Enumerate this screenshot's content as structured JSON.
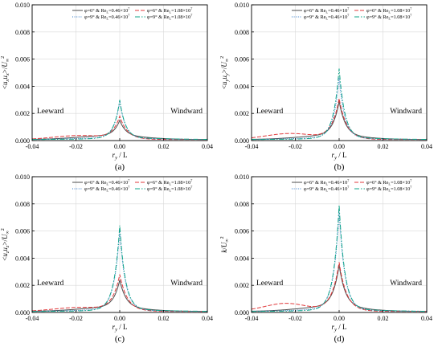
{
  "chart_data": [
    {
      "type": "line",
      "panel_label": "(a)",
      "ylabel": "<u_x u_x>/U_∞^2",
      "ylabel_parts": {
        "open": "<",
        "var1": "u",
        "sub1": "x",
        "var2": "u",
        "sub2": "x",
        "close": ">/",
        "den": "U",
        "den_sub": "∞",
        "den_sup": "2"
      },
      "xlabel": "r_y / L",
      "xlabel_parts": {
        "var": "r",
        "sub": "y",
        "rest": " / L"
      },
      "xlim": [
        -0.04,
        0.04
      ],
      "ylim": [
        0,
        0.01
      ],
      "xticks": [
        "-0.04",
        "-0.02",
        "0.00",
        "0.02",
        "0.04"
      ],
      "yticks": [
        "0.000",
        "0.002",
        "0.004",
        "0.006",
        "0.008",
        "0.010"
      ],
      "grid": true,
      "legend_position": "top",
      "annotations": {
        "left": "Leeward",
        "right": "Windward"
      },
      "series_peaks": [
        0.0015,
        0.0018,
        0.0029,
        0.003
      ]
    },
    {
      "type": "line",
      "panel_label": "(b)",
      "ylabel": "<u_y u_y>/U_∞^2",
      "ylabel_parts": {
        "open": "<",
        "var1": "u",
        "sub1": "y",
        "var2": "u",
        "sub2": "y",
        "close": ">/",
        "den": "U",
        "den_sub": "∞",
        "den_sup": "2"
      },
      "xlabel": "r_y / L",
      "xlabel_parts": {
        "var": "r",
        "sub": "y",
        "rest": " / L"
      },
      "xlim": [
        -0.04,
        0.04
      ],
      "ylim": [
        0,
        0.01
      ],
      "xticks": [
        "-0.04",
        "-0.02",
        "0.00",
        "0.02",
        "0.04"
      ],
      "yticks": [
        "0.000",
        "0.002",
        "0.004",
        "0.006",
        "0.008",
        "0.010"
      ],
      "grid": true,
      "legend_position": "top",
      "annotations": {
        "left": "Leeward",
        "right": "Windward"
      },
      "series_peaks": [
        0.0029,
        0.0031,
        0.0046,
        0.0053
      ]
    },
    {
      "type": "line",
      "panel_label": "(c)",
      "ylabel": "<u_z u_z>/U_∞^2",
      "ylabel_parts": {
        "open": "<",
        "var1": "u",
        "sub1": "z",
        "var2": "u",
        "sub2": "z",
        "close": ">/",
        "den": "U",
        "den_sub": "∞",
        "den_sup": "2"
      },
      "xlabel": "r_y / L",
      "xlabel_parts": {
        "var": "r",
        "sub": "y",
        "rest": " / L"
      },
      "xlim": [
        -0.04,
        0.04
      ],
      "ylim": [
        0,
        0.01
      ],
      "xticks": [
        "-0.04",
        "-0.02",
        "0.00",
        "0.02",
        "0.04"
      ],
      "yticks": [
        "0.000",
        "0.002",
        "0.004",
        "0.006",
        "0.008",
        "0.010"
      ],
      "grid": true,
      "legend_position": "top",
      "annotations": {
        "left": "Leeward",
        "right": "Windward"
      },
      "series_peaks": [
        0.0024,
        0.0028,
        0.006,
        0.0064
      ]
    },
    {
      "type": "line",
      "panel_label": "(d)",
      "ylabel": "k/U_∞^2",
      "ylabel_parts": {
        "open": "",
        "var1": "k",
        "sub1": "",
        "var2": "",
        "sub2": "",
        "close": "/",
        "den": "U",
        "den_sub": "∞",
        "den_sup": "2"
      },
      "xlabel": "r_y / L",
      "xlabel_parts": {
        "var": "r",
        "sub": "y",
        "rest": " / L"
      },
      "xlim": [
        -0.04,
        0.04
      ],
      "ylim": [
        0,
        0.01
      ],
      "xticks": [
        "-0.04",
        "-0.02",
        "0.00",
        "0.02",
        "0.04"
      ],
      "yticks": [
        "0.000",
        "0.002",
        "0.004",
        "0.006",
        "0.008",
        "0.010"
      ],
      "grid": true,
      "legend_position": "top",
      "annotations": {
        "left": "Leeward",
        "right": "Windward"
      },
      "series_peaks": [
        0.0035,
        0.0037,
        0.0074,
        0.0079
      ]
    }
  ],
  "series_styles": [
    {
      "name": "φ=6° & Re_L=0.46×10^7",
      "name_parts": {
        "phi": "φ=6° & Re",
        "sub": "L",
        "mid": "=0.46×10",
        "sup": "7"
      },
      "color": "#4d4d4d",
      "dash": "none"
    },
    {
      "name": "φ=6° & Re_L=1.08×10^7",
      "name_parts": {
        "phi": "φ=6° & Re",
        "sub": "L",
        "mid": "=1.08×10",
        "sup": "7"
      },
      "color": "#e0393b",
      "dash": "5,2"
    },
    {
      "name": "φ=9° & Re_L=0.46×10^7",
      "name_parts": {
        "phi": "φ=9° & Re",
        "sub": "L",
        "mid": "=0.46×10",
        "sup": "7"
      },
      "color": "#2e78c9",
      "dash": "1,1.6"
    },
    {
      "name": "φ=9° & Re_L=1.08×10^7",
      "name_parts": {
        "phi": "φ=9° & Re",
        "sub": "L",
        "mid": "=1.08×10",
        "sup": "7"
      },
      "color": "#12a58a",
      "dash": "6,2,1.5,2"
    }
  ],
  "colors": {
    "axis": "#000000",
    "grid": "#d9d9d9",
    "background": "#ffffff"
  }
}
